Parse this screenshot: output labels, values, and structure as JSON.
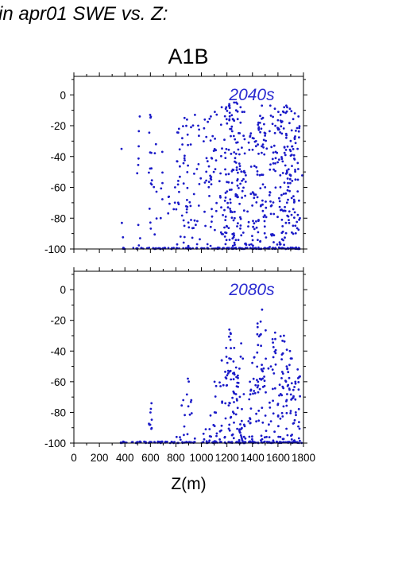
{
  "header": {
    "title": "in apr01 SWE vs. Z:",
    "scenario": "A1B"
  },
  "colors": {
    "points": "#1a1ac8",
    "panel_label": "#2a2ad0",
    "axis": "#000000"
  },
  "chart_data": [
    {
      "type": "scatter",
      "panel_label": "2040s",
      "xlabel": "",
      "ylabel": "",
      "xlim": [
        0,
        1800
      ],
      "ylim": [
        -100,
        12
      ],
      "xticks": [
        0,
        200,
        400,
        600,
        800,
        1000,
        1200,
        1400,
        1600,
        1800
      ],
      "yticks": [
        0,
        -20,
        -40,
        -60,
        -80,
        -100
      ],
      "columns": [
        {
          "x": 380,
          "top": -35,
          "n": 2
        },
        {
          "x": 510,
          "top": -14,
          "n": 8
        },
        {
          "x": 600,
          "top": -13,
          "n": 14
        },
        {
          "x": 640,
          "top": -32,
          "n": 6
        },
        {
          "x": 690,
          "top": -37,
          "n": 5
        },
        {
          "x": 740,
          "top": -66,
          "n": 3
        },
        {
          "x": 790,
          "top": -60,
          "n": 4
        },
        {
          "x": 820,
          "top": -22,
          "n": 12
        },
        {
          "x": 860,
          "top": -15,
          "n": 15
        },
        {
          "x": 890,
          "top": -16,
          "n": 15
        },
        {
          "x": 940,
          "top": -13,
          "n": 12
        },
        {
          "x": 980,
          "top": -20,
          "n": 10
        },
        {
          "x": 1030,
          "top": -16,
          "n": 10
        },
        {
          "x": 1070,
          "top": -14,
          "n": 22
        },
        {
          "x": 1110,
          "top": -11,
          "n": 10
        },
        {
          "x": 1150,
          "top": -8,
          "n": 12
        },
        {
          "x": 1190,
          "top": -8,
          "n": 24
        },
        {
          "x": 1220,
          "top": -6,
          "n": 26
        },
        {
          "x": 1250,
          "top": -5,
          "n": 30
        },
        {
          "x": 1280,
          "top": -5,
          "n": 26
        },
        {
          "x": 1310,
          "top": -8,
          "n": 20
        },
        {
          "x": 1340,
          "top": -11,
          "n": 14
        },
        {
          "x": 1380,
          "top": -25,
          "n": 12
        },
        {
          "x": 1410,
          "top": -28,
          "n": 16
        },
        {
          "x": 1440,
          "top": -18,
          "n": 20
        },
        {
          "x": 1470,
          "top": -7,
          "n": 24
        },
        {
          "x": 1500,
          "top": -19,
          "n": 14
        },
        {
          "x": 1540,
          "top": -7,
          "n": 14
        },
        {
          "x": 1570,
          "top": -9,
          "n": 24
        },
        {
          "x": 1610,
          "top": -11,
          "n": 20
        },
        {
          "x": 1640,
          "top": -8,
          "n": 28
        },
        {
          "x": 1670,
          "top": -7,
          "n": 28
        },
        {
          "x": 1700,
          "top": -9,
          "n": 26
        },
        {
          "x": 1730,
          "top": -12,
          "n": 24
        },
        {
          "x": 1760,
          "top": -14,
          "n": 18
        }
      ]
    },
    {
      "type": "scatter",
      "panel_label": "2080s",
      "xlabel": "Z(m)",
      "ylabel": "",
      "xlim": [
        0,
        1800
      ],
      "ylim": [
        -100,
        12
      ],
      "xticks": [
        0,
        200,
        400,
        600,
        800,
        1000,
        1200,
        1400,
        1600,
        1800
      ],
      "yticks": [
        0,
        -20,
        -40,
        -60,
        -80,
        -100
      ],
      "columns": [
        {
          "x": 380,
          "top": -99,
          "n": 1
        },
        {
          "x": 510,
          "top": -99,
          "n": 1
        },
        {
          "x": 600,
          "top": -74,
          "n": 8
        },
        {
          "x": 660,
          "top": -99,
          "n": 1
        },
        {
          "x": 700,
          "top": -99,
          "n": 1
        },
        {
          "x": 800,
          "top": -96,
          "n": 2
        },
        {
          "x": 860,
          "top": -72,
          "n": 4
        },
        {
          "x": 890,
          "top": -58,
          "n": 5
        },
        {
          "x": 930,
          "top": -72,
          "n": 4
        },
        {
          "x": 1030,
          "top": -91,
          "n": 3
        },
        {
          "x": 1070,
          "top": -82,
          "n": 6
        },
        {
          "x": 1110,
          "top": -60,
          "n": 8
        },
        {
          "x": 1150,
          "top": -46,
          "n": 10
        },
        {
          "x": 1190,
          "top": -38,
          "n": 14
        },
        {
          "x": 1220,
          "top": -26,
          "n": 18
        },
        {
          "x": 1250,
          "top": -38,
          "n": 20
        },
        {
          "x": 1280,
          "top": -56,
          "n": 14
        },
        {
          "x": 1310,
          "top": -35,
          "n": 16
        },
        {
          "x": 1340,
          "top": -88,
          "n": 4
        },
        {
          "x": 1380,
          "top": -60,
          "n": 10
        },
        {
          "x": 1410,
          "top": -44,
          "n": 12
        },
        {
          "x": 1440,
          "top": -22,
          "n": 16
        },
        {
          "x": 1470,
          "top": -13,
          "n": 18
        },
        {
          "x": 1500,
          "top": -45,
          "n": 10
        },
        {
          "x": 1540,
          "top": -50,
          "n": 8
        },
        {
          "x": 1570,
          "top": -28,
          "n": 16
        },
        {
          "x": 1610,
          "top": -62,
          "n": 10
        },
        {
          "x": 1640,
          "top": -30,
          "n": 18
        },
        {
          "x": 1670,
          "top": -50,
          "n": 16
        },
        {
          "x": 1700,
          "top": -40,
          "n": 14
        },
        {
          "x": 1730,
          "top": -60,
          "n": 12
        },
        {
          "x": 1760,
          "top": -52,
          "n": 14
        }
      ]
    }
  ]
}
